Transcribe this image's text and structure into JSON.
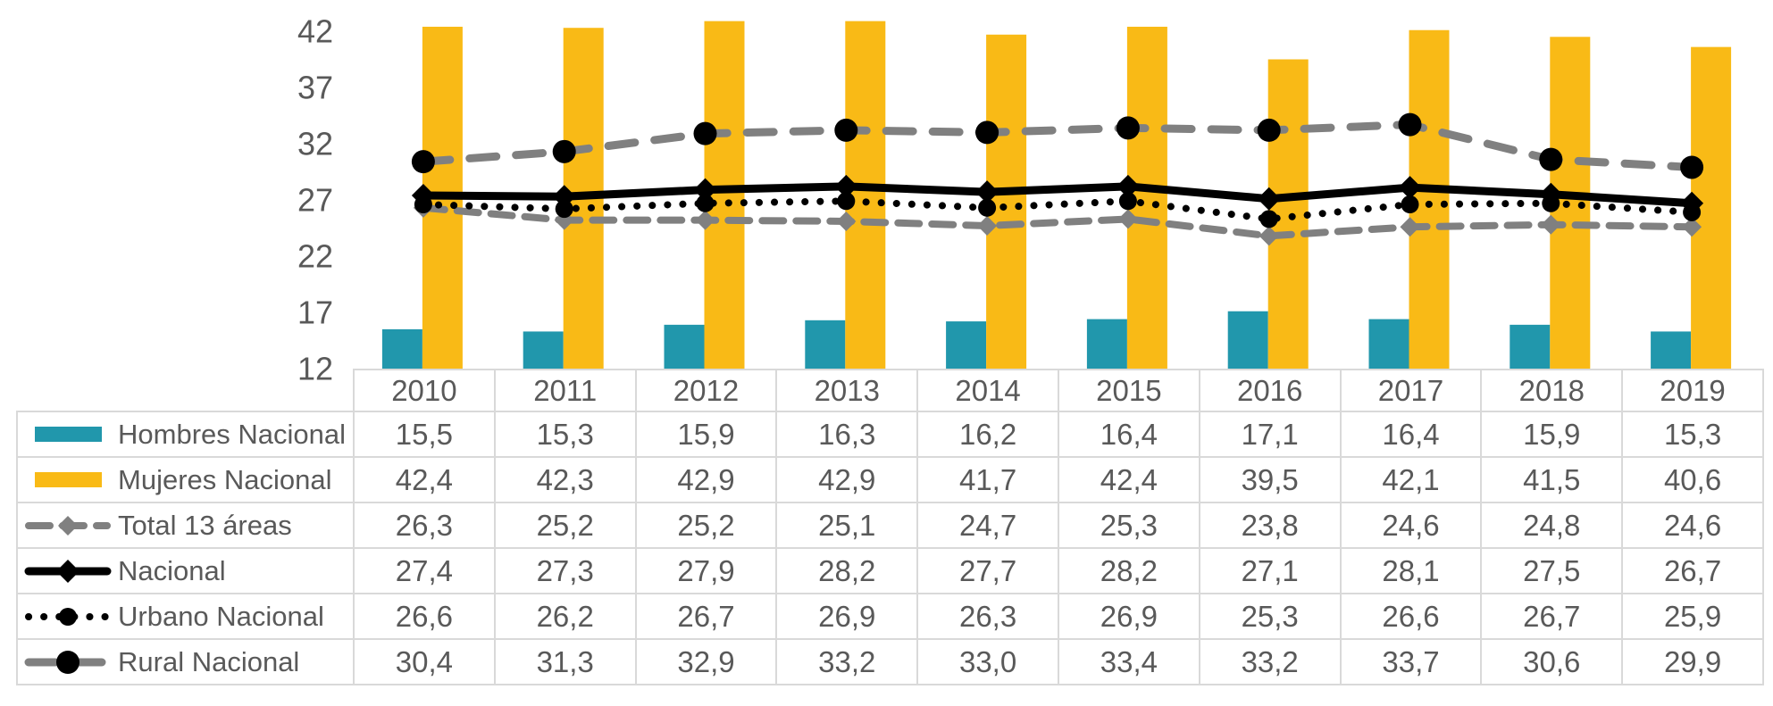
{
  "colors": {
    "bar_hombres": "#2197AC",
    "bar_mujeres": "#F9BA16",
    "line_gray": "#808080",
    "line_black": "#000000",
    "text_gray": "#595959",
    "table_border": "#D9D9D9"
  },
  "chart_data": {
    "type": "combo",
    "title": "",
    "xlabel": "",
    "ylabel": "",
    "categories": [
      "2010",
      "2011",
      "2012",
      "2013",
      "2014",
      "2015",
      "2016",
      "2017",
      "2018",
      "2019"
    ],
    "y_axis": {
      "min": 12,
      "max": 43.5,
      "tick_step": 5,
      "ticks": [
        42,
        37,
        32,
        27,
        22,
        17,
        12
      ],
      "tick_labels": [
        "42",
        "37",
        "32",
        "27",
        "22",
        "17",
        "12"
      ],
      "gridlines": false
    },
    "legend_position": "table-left",
    "series": [
      {
        "name": "Hombres Nacional",
        "type": "bar",
        "color": "#2197AC",
        "marker": "swatch",
        "values": [
          15.5,
          15.3,
          15.9,
          16.3,
          16.2,
          16.4,
          17.1,
          16.4,
          15.9,
          15.3
        ],
        "display": [
          "15,5",
          "15,3",
          "15,9",
          "16,3",
          "16,2",
          "16,4",
          "17,1",
          "16,4",
          "15,9",
          "15,3"
        ]
      },
      {
        "name": "Mujeres Nacional",
        "type": "bar",
        "color": "#F9BA16",
        "marker": "swatch",
        "values": [
          42.4,
          42.3,
          42.9,
          42.9,
          41.7,
          42.4,
          39.5,
          42.1,
          41.5,
          40.6
        ],
        "display": [
          "42,4",
          "42,3",
          "42,9",
          "42,9",
          "41,7",
          "42,4",
          "39,5",
          "42,1",
          "41,5",
          "40,6"
        ]
      },
      {
        "name": "Total 13 áreas",
        "type": "line",
        "line_style": "dashed",
        "color": "#808080",
        "marker": "diamond",
        "marker_color": "#808080",
        "values": [
          26.3,
          25.2,
          25.2,
          25.1,
          24.7,
          25.3,
          23.8,
          24.6,
          24.8,
          24.6
        ],
        "display": [
          "26,3",
          "25,2",
          "25,2",
          "25,1",
          "24,7",
          "25,3",
          "23,8",
          "24,6",
          "24,8",
          "24,6"
        ]
      },
      {
        "name": "Nacional",
        "type": "line",
        "line_style": "solid",
        "color": "#000000",
        "marker": "diamond",
        "marker_color": "#000000",
        "values": [
          27.4,
          27.3,
          27.9,
          28.2,
          27.7,
          28.2,
          27.1,
          28.1,
          27.5,
          26.7
        ],
        "display": [
          "27,4",
          "27,3",
          "27,9",
          "28,2",
          "27,7",
          "28,2",
          "27,1",
          "28,1",
          "27,5",
          "26,7"
        ]
      },
      {
        "name": "Urbano Nacional",
        "type": "line",
        "line_style": "dotted",
        "color": "#000000",
        "marker": "circle",
        "marker_color": "#000000",
        "values": [
          26.6,
          26.2,
          26.7,
          26.9,
          26.3,
          26.9,
          25.3,
          26.6,
          26.7,
          25.9
        ],
        "display": [
          "26,6",
          "26,2",
          "26,7",
          "26,9",
          "26,3",
          "26,9",
          "25,3",
          "26,6",
          "26,7",
          "25,9"
        ]
      },
      {
        "name": "Rural Nacional",
        "type": "line",
        "line_style": "dashed-long",
        "color": "#808080",
        "marker": "circle-large",
        "marker_color": "#000000",
        "values": [
          30.4,
          31.3,
          32.9,
          33.2,
          33.0,
          33.4,
          33.2,
          33.7,
          30.6,
          29.9
        ],
        "display": [
          "30,4",
          "31,3",
          "32,9",
          "33,2",
          "33,0",
          "33,4",
          "33,2",
          "33,7",
          "30,6",
          "29,9"
        ]
      }
    ]
  }
}
